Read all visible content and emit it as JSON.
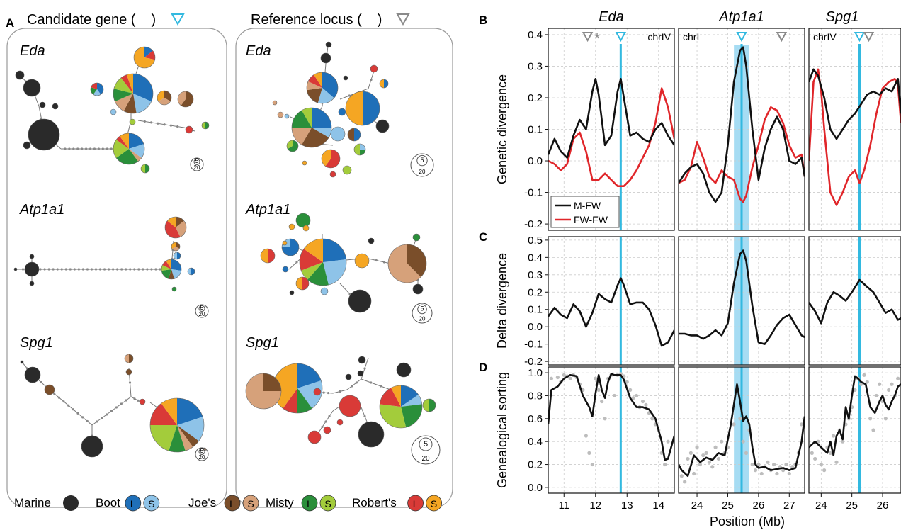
{
  "panelA": {
    "letter": "A",
    "col_titles": [
      "Candidate gene (",
      "Reference locus ("
    ],
    "col_title_close": ")",
    "gene_labels": [
      "Eda",
      "Atp1a1",
      "Spg1"
    ],
    "scale_small": "5",
    "scale_large": "20"
  },
  "legend": {
    "marine": "Marine",
    "pops": [
      {
        "name": "Boot",
        "l": "L",
        "s": "S"
      },
      {
        "name": "Joe's",
        "l": "L",
        "s": "S"
      },
      {
        "name": "Misty",
        "l": "L",
        "s": "S"
      },
      {
        "name": "Robert's",
        "l": "L",
        "s": "S"
      }
    ],
    "series": [
      "M-FW",
      "FW-FW"
    ]
  },
  "colors": {
    "marine": "#2a2a2a",
    "boot_l": "#1f6fb8",
    "boot_s": "#8ec3e8",
    "joes_l": "#7a4e2a",
    "joes_s": "#d6a17a",
    "misty_l": "#2a8f3a",
    "misty_s": "#a3cc3b",
    "roberts_l": "#d93a37",
    "roberts_s": "#f5a623",
    "cyan": "#33b9e0",
    "mfw": "#111111",
    "fwfw": "#e0262a",
    "highlight": "#a6dcf3",
    "dots": "#bdbdbd"
  },
  "panelB_letter": "B",
  "panelC_letter": "C",
  "panelD_letter": "D",
  "xlabel": "Position (Mb)",
  "chart_data": [
    {
      "type": "line",
      "panel": "B",
      "ylabel": "Genetic divergence",
      "ylim": [
        -0.22,
        0.42
      ],
      "yticks": [
        -0.2,
        -0.1,
        0.0,
        0.1,
        0.2,
        0.3,
        0.4
      ],
      "grid": true,
      "legend_position": "bottom-left",
      "facets": [
        {
          "gene": "Eda",
          "chrom": "chrIV",
          "xlim": [
            10.5,
            14.5
          ],
          "xticks": [
            11,
            12,
            13,
            14
          ],
          "candidate": 12.8,
          "reference": 11.75,
          "asterisk": 12.05,
          "series": [
            {
              "name": "M-FW",
              "x": [
                10.5,
                10.7,
                10.9,
                11.1,
                11.3,
                11.5,
                11.7,
                11.9,
                12.0,
                12.1,
                12.3,
                12.5,
                12.7,
                12.8,
                12.9,
                13.1,
                13.3,
                13.5,
                13.7,
                13.9,
                14.1,
                14.3,
                14.5
              ],
              "y": [
                0.02,
                0.07,
                0.03,
                0.01,
                0.08,
                0.13,
                0.1,
                0.22,
                0.26,
                0.21,
                0.05,
                0.08,
                0.22,
                0.26,
                0.2,
                0.08,
                0.09,
                0.07,
                0.06,
                0.1,
                0.12,
                0.08,
                0.05
              ]
            },
            {
              "name": "FW-FW",
              "x": [
                10.5,
                10.7,
                10.9,
                11.1,
                11.3,
                11.5,
                11.7,
                11.9,
                12.1,
                12.3,
                12.5,
                12.7,
                12.9,
                13.1,
                13.3,
                13.5,
                13.7,
                13.9,
                14.1,
                14.3,
                14.5
              ],
              "y": [
                0.0,
                -0.01,
                -0.03,
                -0.01,
                0.07,
                0.09,
                0.03,
                -0.06,
                -0.06,
                -0.04,
                -0.06,
                -0.08,
                -0.08,
                -0.06,
                -0.03,
                0.01,
                0.05,
                0.12,
                0.23,
                0.17,
                0.07
              ]
            }
          ]
        },
        {
          "gene": "Atp1a1",
          "chrom": "chrI",
          "xlim": [
            23.4,
            27.5
          ],
          "xticks": [
            24,
            25,
            26,
            27
          ],
          "candidate": 25.45,
          "reference": 26.75,
          "highlight": [
            25.2,
            25.7
          ],
          "series": [
            {
              "name": "M-FW",
              "x": [
                23.4,
                23.6,
                23.8,
                24.0,
                24.2,
                24.4,
                24.6,
                24.8,
                25.0,
                25.2,
                25.4,
                25.5,
                25.6,
                25.8,
                26.0,
                26.2,
                26.4,
                26.6,
                26.8,
                27.0,
                27.2,
                27.4,
                27.5
              ],
              "y": [
                -0.07,
                -0.04,
                -0.02,
                -0.01,
                -0.04,
                -0.1,
                -0.13,
                -0.1,
                0.05,
                0.25,
                0.35,
                0.36,
                0.3,
                0.1,
                -0.06,
                0.04,
                0.1,
                0.14,
                0.1,
                0.0,
                -0.01,
                0.01,
                -0.05
              ]
            },
            {
              "name": "FW-FW",
              "x": [
                23.4,
                23.6,
                23.8,
                24.0,
                24.2,
                24.4,
                24.6,
                24.8,
                25.0,
                25.2,
                25.4,
                25.5,
                25.6,
                25.8,
                26.0,
                26.2,
                26.4,
                26.6,
                26.8,
                27.0,
                27.2,
                27.4,
                27.5
              ],
              "y": [
                -0.07,
                -0.06,
                -0.02,
                0.06,
                0.01,
                -0.05,
                -0.07,
                -0.03,
                -0.05,
                -0.06,
                -0.12,
                -0.13,
                -0.11,
                -0.02,
                0.05,
                0.13,
                0.17,
                0.16,
                0.12,
                0.05,
                0.01,
                0.02,
                -0.05
              ]
            }
          ]
        },
        {
          "gene": "Spg1",
          "chrom": "chrIV",
          "xlim": [
            23.6,
            26.6
          ],
          "xticks": [
            24,
            25,
            26
          ],
          "candidate": 25.25,
          "reference": 25.55,
          "series": [
            {
              "name": "M-FW",
              "x": [
                23.6,
                23.75,
                23.9,
                24.1,
                24.3,
                24.5,
                24.7,
                24.9,
                25.1,
                25.3,
                25.5,
                25.7,
                25.9,
                26.1,
                26.3,
                26.5,
                26.6
              ],
              "y": [
                0.25,
                0.29,
                0.27,
                0.2,
                0.1,
                0.07,
                0.1,
                0.13,
                0.15,
                0.18,
                0.21,
                0.22,
                0.21,
                0.23,
                0.22,
                0.26,
                0.15
              ]
            },
            {
              "name": "FW-FW",
              "x": [
                23.6,
                23.75,
                23.9,
                24.0,
                24.1,
                24.3,
                24.5,
                24.7,
                24.9,
                25.1,
                25.25,
                25.4,
                25.6,
                25.8,
                26.0,
                26.2,
                26.4,
                26.5,
                26.6
              ],
              "y": [
                0.0,
                0.25,
                0.29,
                0.22,
                0.1,
                -0.1,
                -0.14,
                -0.1,
                -0.05,
                -0.03,
                -0.07,
                -0.03,
                0.05,
                0.15,
                0.23,
                0.25,
                0.26,
                0.24,
                0.12
              ]
            }
          ]
        }
      ]
    },
    {
      "type": "line",
      "panel": "C",
      "ylabel": "Delta divergence",
      "ylim": [
        -0.22,
        0.52
      ],
      "yticks": [
        -0.2,
        -0.1,
        0.0,
        0.1,
        0.2,
        0.3,
        0.4,
        0.5
      ],
      "grid": true,
      "facets": [
        {
          "gene": "Eda",
          "x": [
            10.5,
            10.7,
            10.9,
            11.1,
            11.3,
            11.5,
            11.7,
            11.9,
            12.1,
            12.3,
            12.5,
            12.7,
            12.8,
            12.9,
            13.1,
            13.3,
            13.5,
            13.7,
            13.9,
            14.1,
            14.3,
            14.5
          ],
          "y": [
            0.06,
            0.11,
            0.07,
            0.05,
            0.13,
            0.09,
            0.0,
            0.08,
            0.19,
            0.16,
            0.14,
            0.24,
            0.28,
            0.24,
            0.13,
            0.14,
            0.14,
            0.1,
            0.01,
            -0.11,
            -0.09,
            -0.02
          ]
        },
        {
          "gene": "Atp1a1",
          "x": [
            23.4,
            23.6,
            23.8,
            24.0,
            24.2,
            24.4,
            24.6,
            24.8,
            25.0,
            25.2,
            25.4,
            25.5,
            25.6,
            25.8,
            26.0,
            26.2,
            26.4,
            26.6,
            26.8,
            27.0,
            27.2,
            27.4,
            27.5
          ],
          "y": [
            -0.04,
            -0.04,
            -0.05,
            -0.05,
            -0.07,
            -0.05,
            -0.02,
            -0.05,
            0.02,
            0.25,
            0.42,
            0.44,
            0.38,
            0.12,
            -0.09,
            -0.1,
            -0.05,
            0.01,
            0.05,
            0.07,
            0.01,
            -0.05,
            -0.06
          ]
        },
        {
          "gene": "Spg1",
          "x": [
            23.6,
            23.8,
            24.0,
            24.2,
            24.4,
            24.6,
            24.8,
            25.0,
            25.25,
            25.5,
            25.7,
            25.9,
            26.1,
            26.3,
            26.5,
            26.6
          ],
          "y": [
            0.14,
            0.09,
            0.02,
            0.14,
            0.2,
            0.18,
            0.15,
            0.2,
            0.27,
            0.23,
            0.2,
            0.14,
            0.08,
            0.1,
            0.04,
            0.05
          ]
        }
      ]
    },
    {
      "type": "scatter",
      "panel": "D",
      "ylabel": "Genealogical sorting",
      "ylim": [
        -0.05,
        1.05
      ],
      "yticks": [
        0.0,
        0.2,
        0.4,
        0.6,
        0.8,
        1.0
      ],
      "grid": true,
      "facets": [
        {
          "gene": "Eda",
          "line_x": [
            10.5,
            10.6,
            10.8,
            11.0,
            11.2,
            11.4,
            11.6,
            11.8,
            11.9,
            12.0,
            12.1,
            12.2,
            12.3,
            12.4,
            12.5,
            12.6,
            12.7,
            12.8,
            12.9,
            13.1,
            13.3,
            13.5,
            13.7,
            13.9,
            14.1,
            14.2,
            14.3,
            14.5
          ],
          "line_y": [
            0.55,
            0.85,
            0.88,
            0.95,
            0.98,
            0.97,
            0.8,
            0.7,
            0.62,
            0.82,
            0.98,
            0.85,
            0.78,
            0.92,
            0.99,
            0.98,
            0.98,
            0.98,
            0.94,
            0.78,
            0.7,
            0.7,
            0.68,
            0.6,
            0.4,
            0.24,
            0.25,
            0.45
          ],
          "points_x": [
            10.6,
            10.8,
            10.9,
            11.0,
            11.1,
            11.2,
            11.3,
            11.4,
            11.5,
            11.6,
            11.7,
            11.8,
            11.9,
            12.0,
            12.1,
            12.2,
            12.3,
            12.4,
            12.5,
            12.6,
            12.7,
            12.8,
            12.9,
            13.0,
            13.1,
            13.2,
            13.3,
            13.4,
            13.5,
            13.6,
            13.7,
            13.8,
            13.9,
            14.0,
            14.1,
            14.2,
            14.3
          ],
          "points_y": [
            0.95,
            0.96,
            0.92,
            0.98,
            0.97,
            0.95,
            0.98,
            0.96,
            0.9,
            0.85,
            0.45,
            0.3,
            0.2,
            0.95,
            0.85,
            0.75,
            0.6,
            0.95,
            0.98,
            0.8,
            0.98,
            0.99,
            0.97,
            0.92,
            0.85,
            0.78,
            0.8,
            0.7,
            0.75,
            0.72,
            0.65,
            0.6,
            0.55,
            0.5,
            0.3,
            0.2,
            0.4
          ]
        },
        {
          "gene": "Atp1a1",
          "line_x": [
            23.4,
            23.5,
            23.7,
            23.9,
            24.1,
            24.3,
            24.5,
            24.7,
            24.9,
            25.1,
            25.3,
            25.4,
            25.5,
            25.6,
            25.7,
            25.8,
            25.9,
            26.0,
            26.2,
            26.4,
            26.6,
            26.8,
            27.0,
            27.2,
            27.4,
            27.5
          ],
          "line_y": [
            0.2,
            0.15,
            0.1,
            0.28,
            0.22,
            0.26,
            0.24,
            0.3,
            0.28,
            0.55,
            0.9,
            0.75,
            0.58,
            0.62,
            0.55,
            0.35,
            0.2,
            0.17,
            0.18,
            0.15,
            0.16,
            0.17,
            0.15,
            0.17,
            0.4,
            0.62
          ],
          "points_x": [
            23.5,
            23.6,
            23.7,
            23.8,
            23.9,
            24.0,
            24.1,
            24.2,
            24.3,
            24.4,
            24.5,
            24.6,
            24.7,
            24.8,
            24.9,
            25.0,
            25.2,
            25.4,
            25.5,
            25.6,
            25.7,
            25.8,
            25.9,
            26.0,
            26.1,
            26.2,
            26.3,
            26.4,
            26.5,
            26.6,
            26.7,
            26.8,
            26.9,
            27.0,
            27.1,
            27.2,
            27.3,
            27.4
          ],
          "points_y": [
            0.1,
            0.05,
            0.25,
            0.3,
            0.12,
            0.35,
            0.2,
            0.28,
            0.3,
            0.22,
            0.18,
            0.35,
            0.25,
            0.4,
            0.3,
            0.35,
            0.55,
            0.6,
            0.4,
            0.3,
            0.5,
            0.2,
            0.15,
            0.2,
            0.12,
            0.18,
            0.22,
            0.15,
            0.2,
            0.12,
            0.18,
            0.15,
            0.2,
            0.12,
            0.18,
            0.2,
            0.3,
            0.55
          ]
        },
        {
          "gene": "Spg1",
          "line_x": [
            23.6,
            23.8,
            24.0,
            24.2,
            24.3,
            24.4,
            24.5,
            24.6,
            24.7,
            24.8,
            24.9,
            25.0,
            25.1,
            25.2,
            25.3,
            25.45,
            25.6,
            25.75,
            25.9,
            26.0,
            26.1,
            26.2,
            26.3,
            26.4,
            26.5,
            26.6
          ],
          "line_y": [
            0.35,
            0.4,
            0.35,
            0.3,
            0.4,
            0.28,
            0.45,
            0.5,
            0.42,
            0.7,
            0.6,
            0.8,
            0.97,
            0.95,
            0.92,
            0.9,
            0.7,
            0.65,
            0.75,
            0.8,
            0.72,
            0.68,
            0.75,
            0.8,
            0.88,
            0.9
          ],
          "points_x": [
            23.7,
            23.8,
            23.9,
            24.0,
            24.1,
            24.2,
            24.3,
            24.4,
            24.5,
            24.6,
            24.7,
            24.8,
            24.9,
            25.0,
            25.1,
            25.2,
            25.3,
            25.4,
            25.5,
            25.6,
            25.7,
            25.8,
            25.9,
            26.0,
            26.1,
            26.2,
            26.3,
            26.4,
            26.5
          ],
          "points_y": [
            0.3,
            0.25,
            0.4,
            0.2,
            0.15,
            0.35,
            0.3,
            0.45,
            0.22,
            0.5,
            0.4,
            0.55,
            0.6,
            0.7,
            0.85,
            0.95,
            0.9,
            0.98,
            0.92,
            0.6,
            0.5,
            0.8,
            0.9,
            0.75,
            0.6,
            0.85,
            0.9,
            0.8,
            0.95
          ]
        }
      ]
    }
  ]
}
